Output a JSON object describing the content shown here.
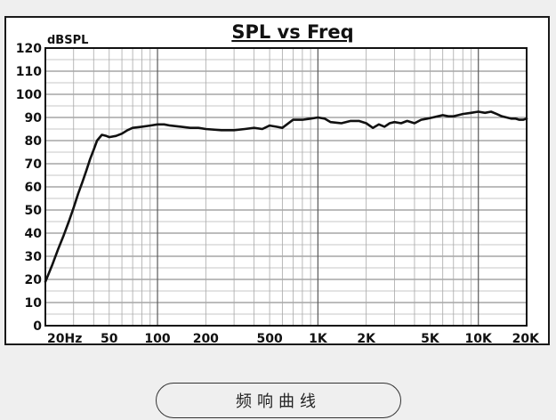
{
  "chart_data": {
    "type": "line",
    "title": "SPL vs Freq",
    "ylabel": "dBSPL",
    "xlabel": "",
    "x_scale": "log",
    "xlim": [
      20,
      20000
    ],
    "ylim": [
      0,
      120
    ],
    "grid": true,
    "y_ticks": [
      0,
      10,
      20,
      30,
      40,
      50,
      60,
      70,
      80,
      90,
      100,
      110,
      120
    ],
    "x_ticks": [
      {
        "value": 20,
        "label": "20Hz"
      },
      {
        "value": 50,
        "label": "50"
      },
      {
        "value": 100,
        "label": "100"
      },
      {
        "value": 200,
        "label": "200"
      },
      {
        "value": 500,
        "label": "500"
      },
      {
        "value": 1000,
        "label": "1K"
      },
      {
        "value": 2000,
        "label": "2K"
      },
      {
        "value": 5000,
        "label": "5K"
      },
      {
        "value": 10000,
        "label": "10K"
      },
      {
        "value": 20000,
        "label": "20K"
      }
    ],
    "series": [
      {
        "x": [
          20,
          22,
          24,
          26,
          28,
          30,
          32,
          34,
          36,
          38,
          40,
          42,
          45,
          48,
          50,
          55,
          60,
          65,
          70,
          80,
          90,
          100,
          110,
          120,
          140,
          160,
          180,
          200,
          250,
          300,
          350,
          400,
          450,
          500,
          550,
          600,
          700,
          800,
          900,
          1000,
          1100,
          1200,
          1400,
          1600,
          1800,
          2000,
          2200,
          2400,
          2600,
          2800,
          3000,
          3300,
          3600,
          4000,
          4400,
          4800,
          5200,
          5600,
          6000,
          6500,
          7000,
          7500,
          8000,
          9000,
          10000,
          11000,
          12000,
          13000,
          14000,
          15000,
          16000,
          17000,
          18000,
          19000,
          20000
        ],
        "values": [
          19,
          26,
          33,
          39,
          45,
          51,
          57,
          62,
          67,
          72,
          76,
          80,
          82.5,
          82,
          81.5,
          82,
          83,
          84.5,
          85.5,
          86,
          86.5,
          87,
          87,
          86.5,
          86,
          85.5,
          85.5,
          85,
          84.5,
          84.5,
          85,
          85.5,
          85,
          86.5,
          86,
          85.5,
          89,
          89,
          89.5,
          90,
          89.5,
          88,
          87.5,
          88.5,
          88.5,
          87.5,
          85.5,
          87,
          86,
          87.5,
          88,
          87.5,
          88.5,
          87.5,
          89,
          89.5,
          90,
          90.5,
          91,
          90.5,
          90.5,
          91,
          91.5,
          92,
          92.5,
          92,
          92.5,
          91.5,
          90.5,
          90,
          89.5,
          89.5,
          89,
          89,
          89.5
        ]
      }
    ]
  },
  "caption": "频响曲线"
}
